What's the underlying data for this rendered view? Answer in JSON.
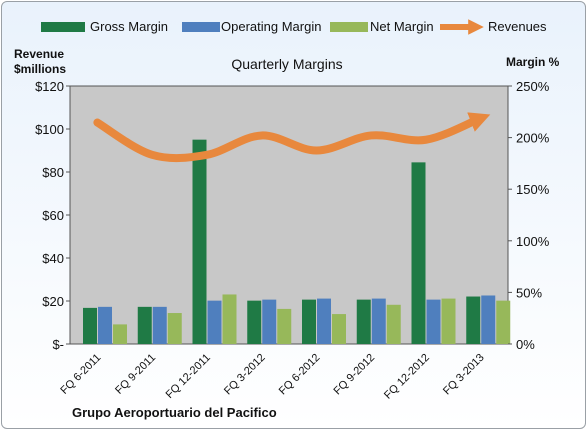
{
  "chart_data": {
    "type": "bar",
    "title": "Quarterly Margins",
    "company": "Grupo Aeroportuario del Pacifico",
    "left_axis_label_line1": "Revenue",
    "left_axis_label_line2": "$millions",
    "right_axis_label": "Margin %",
    "left_ticks": [
      "$-",
      "$20",
      "$40",
      "$60",
      "$80",
      "$100",
      "$120"
    ],
    "right_ticks": [
      "0%",
      "50%",
      "100%",
      "150%",
      "200%",
      "250%"
    ],
    "left_ylim": [
      0,
      120
    ],
    "right_ylim": [
      0,
      250
    ],
    "grid": "off",
    "legend_position": "top",
    "categories": [
      "FQ 6-2011",
      "FQ 9-2011",
      "FQ 12-2011",
      "FQ 3-2012",
      "FQ 6-2012",
      "FQ 9-2012",
      "FQ 12-2012",
      "FQ 3-2013"
    ],
    "series": [
      {
        "name": "Gross Margin",
        "axis": "right",
        "color": "#1f7a45",
        "values": [
          35,
          36,
          198,
          42,
          43,
          43,
          176,
          46
        ]
      },
      {
        "name": "Operating Margin",
        "axis": "right",
        "color": "#4f7fbe",
        "values": [
          36,
          36,
          42,
          43,
          44,
          44,
          43,
          47
        ]
      },
      {
        "name": "Net Margin",
        "axis": "right",
        "color": "#97b85a",
        "values": [
          19,
          30,
          48,
          34,
          29,
          38,
          44,
          42
        ]
      },
      {
        "name": "Revenues",
        "axis": "left",
        "color": "#e8883d",
        "type": "line",
        "values": [
          103,
          88,
          88,
          97,
          90,
          97,
          95,
          105
        ]
      }
    ],
    "colors": {
      "plot_background": "#c8c8c8",
      "frame_top": "#e9f2fc"
    }
  }
}
